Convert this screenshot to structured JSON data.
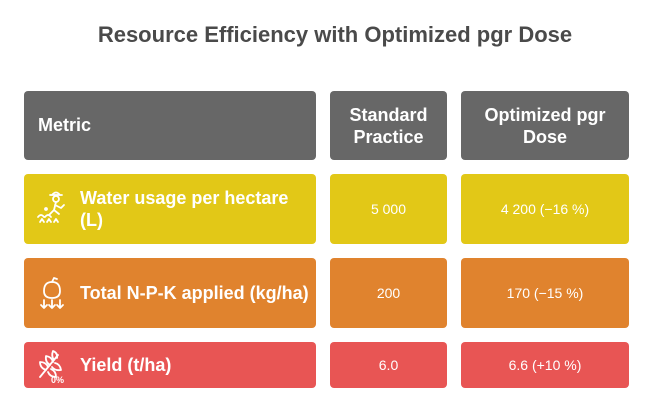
{
  "title": "Resource Efficiency with Optimized pgr Dose",
  "table": {
    "headers": [
      "Metric",
      "Standard Practice",
      "Optimized pgr Dose"
    ],
    "rows": [
      {
        "metric": "Water usage per hectare (L)",
        "standard": "5 000",
        "optimized": "4 200 (−16 %)",
        "icon": "farmer-watering-icon",
        "color": "#e2c817"
      },
      {
        "metric": "Total N-P-K applied (kg/ha)",
        "standard": "200",
        "optimized": "170 (−15 %)",
        "icon": "fertilizer-icon",
        "color": "#e0832e"
      },
      {
        "metric": "Yield (t/ha)",
        "standard": "6.0",
        "optimized": "6.6 (+10 %)",
        "icon": "wheat-zero-percent-icon",
        "color": "#e85554"
      }
    ]
  },
  "icon_zero_label": "0%"
}
